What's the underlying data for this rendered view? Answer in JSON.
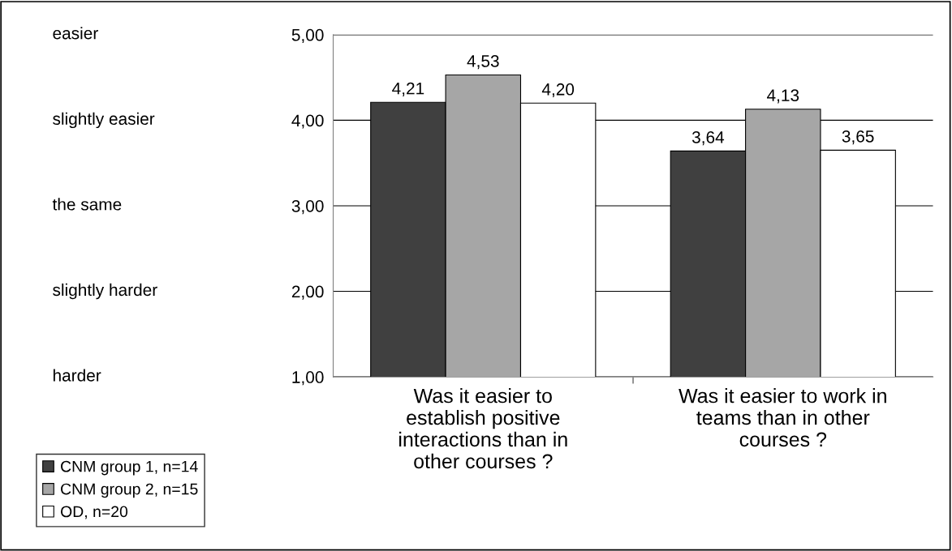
{
  "chart_data": {
    "type": "bar",
    "categories": [
      "Was it easier to\nestablish positive\ninteractions than in\nother courses ?",
      "Was it easier to work in\nteams than in other\ncourses ?"
    ],
    "series": [
      {
        "name": "CNM group 1, n=14",
        "color": "#404040",
        "values": [
          4.21,
          3.64
        ],
        "value_labels": [
          "4,21",
          "3,64"
        ]
      },
      {
        "name": "CNM group 2, n=15",
        "color": "#a6a6a6",
        "values": [
          4.53,
          4.13
        ],
        "value_labels": [
          "4,53",
          "4,13"
        ]
      },
      {
        "name": "OD, n=20",
        "color": "#ffffff",
        "values": [
          4.2,
          3.65
        ],
        "value_labels": [
          "4,20",
          "3,65"
        ]
      }
    ],
    "ylim": [
      1,
      5
    ],
    "yticks": [
      {
        "value": 1,
        "label": "1,00"
      },
      {
        "value": 2,
        "label": "2,00"
      },
      {
        "value": 3,
        "label": "3,00"
      },
      {
        "value": 4,
        "label": "4,00"
      },
      {
        "value": 5,
        "label": "5,00"
      }
    ],
    "annotations": [
      "harder",
      "slightly harder",
      "the same",
      "slightly easier",
      "easier"
    ],
    "grid": "y",
    "legend": "bottom left"
  }
}
